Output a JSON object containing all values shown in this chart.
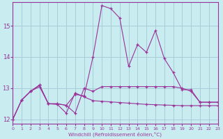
{
  "xlabel": "Windchill (Refroidissement éolien,°C)",
  "bg_color": "#c8ecf0",
  "grid_color": "#a8ccd8",
  "line_color": "#993399",
  "xlim": [
    0,
    23
  ],
  "ylim": [
    11.85,
    15.75
  ],
  "yticks": [
    12,
    13,
    14,
    15
  ],
  "ytick_top": 15,
  "xticks": [
    0,
    1,
    2,
    3,
    4,
    5,
    6,
    7,
    8,
    9,
    10,
    11,
    12,
    13,
    14,
    15,
    16,
    17,
    18,
    19,
    20,
    21,
    22,
    23
  ],
  "series": [
    [
      12.0,
      12.62,
      12.9,
      13.1,
      12.5,
      12.5,
      12.45,
      12.2,
      13.0,
      12.9,
      13.05,
      13.05,
      13.05,
      13.05,
      13.05,
      13.05,
      13.05,
      13.05,
      13.05,
      13.0,
      12.9,
      12.55,
      12.55,
      12.55
    ],
    [
      12.0,
      12.62,
      12.9,
      13.1,
      12.5,
      12.5,
      12.45,
      12.8,
      12.75,
      14.0,
      15.65,
      15.55,
      15.25,
      13.7,
      14.4,
      14.15,
      14.85,
      13.95,
      13.5,
      12.95,
      12.95,
      12.55,
      12.55,
      12.55
    ],
    [
      12.0,
      12.62,
      12.9,
      13.05,
      12.5,
      12.48,
      12.2,
      12.85,
      12.72,
      12.6,
      12.58,
      12.56,
      12.54,
      12.52,
      12.5,
      12.48,
      12.47,
      12.46,
      12.45,
      12.44,
      12.44,
      12.44,
      12.44,
      12.44
    ]
  ]
}
